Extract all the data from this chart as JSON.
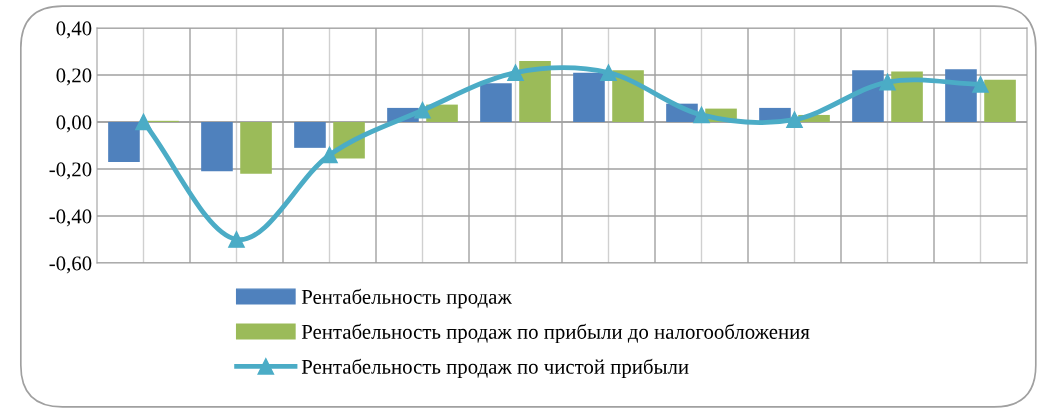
{
  "chart_data": {
    "type": "bar",
    "categories": [
      null,
      null,
      null,
      null,
      null,
      null,
      null,
      null,
      null,
      null
    ],
    "series": [
      {
        "name": "Рентабельность продаж",
        "color": "#4f81bd",
        "values": [
          -0.17,
          -0.21,
          -0.11,
          0.06,
          0.165,
          0.21,
          0.078,
          0.06,
          0.22,
          0.225
        ]
      },
      {
        "name": "Рентабельность продаж по прибыли до налогообложения",
        "color": "#9bbb59",
        "values": [
          0.005,
          -0.22,
          -0.155,
          0.074,
          0.26,
          0.22,
          0.057,
          0.03,
          0.215,
          0.18
        ]
      },
      {
        "name": "Рентабельность продаж по чистой прибыли",
        "color": "#4bacc6",
        "type": "line",
        "marker": "triangle",
        "values": [
          0.0,
          -0.5,
          -0.14,
          0.05,
          0.21,
          0.21,
          0.03,
          0.01,
          0.17,
          0.16
        ]
      }
    ],
    "ylim": [
      -0.6,
      0.4
    ],
    "yticks": [
      {
        "value": -0.6,
        "label": "-0,60"
      },
      {
        "value": -0.4,
        "label": "-0,40"
      },
      {
        "value": -0.2,
        "label": "-0,20"
      },
      {
        "value": 0,
        "label": "0,00"
      },
      {
        "value": 0.2,
        "label": "0,20"
      },
      {
        "value": 0.4,
        "label": "0,40"
      }
    ],
    "grid": true,
    "legend": "bottom",
    "tick_labels": "y"
  }
}
